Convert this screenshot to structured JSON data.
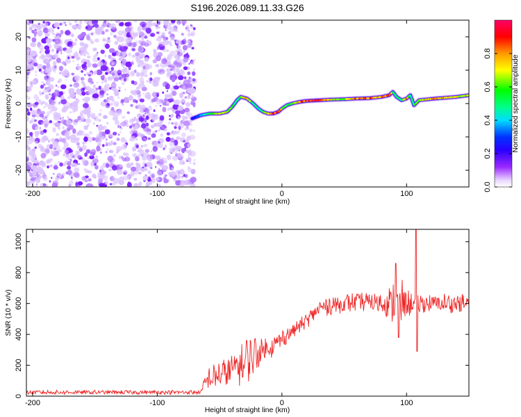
{
  "title": "S196.2026.089.11.33.G26",
  "chart_data": [
    {
      "type": "heatmap",
      "name": "spectrogram",
      "xlabel": "Height of straight line (km)",
      "ylabel": "Frequency (Hz)",
      "xlim": [
        -205,
        150
      ],
      "ylim": [
        -25,
        25
      ],
      "xticks": [
        -200,
        -100,
        0,
        100
      ],
      "yticks": [
        -20,
        -10,
        0,
        10,
        20
      ],
      "colorbar": {
        "label": "Normalized spectral amplitude",
        "range": [
          0,
          1
        ],
        "ticks": [
          "0.0",
          "0.2",
          "0.4",
          "0.6",
          "0.8"
        ],
        "colormap": [
          "#ffffff",
          "#e8c8ff",
          "#7b00ff",
          "#0000ff",
          "#00ffff",
          "#00ff00",
          "#ffff00",
          "#ff8800",
          "#ff0000",
          "#ff0088"
        ]
      },
      "noise_region_x": [
        -205,
        -70
      ],
      "signal_trace": {
        "x": [
          -72,
          -65,
          -58,
          -50,
          -44,
          -40,
          -36,
          -33,
          -28,
          -23,
          -19,
          -15,
          -11,
          -7,
          -3,
          0,
          4,
          8,
          14,
          20,
          30,
          40,
          50,
          60,
          70,
          80,
          86,
          89,
          92,
          96,
          100,
          103,
          106,
          110,
          120,
          130,
          140,
          150
        ],
        "freq_hz": [
          -4.5,
          -3.5,
          -3,
          -3,
          -2.5,
          -1,
          1,
          2,
          1.5,
          0,
          -1.5,
          -2.5,
          -3,
          -3,
          -2.5,
          -1.5,
          -0.5,
          0,
          0.5,
          0.8,
          1,
          1.2,
          1.3,
          1.5,
          1.6,
          2,
          2.5,
          3.5,
          2,
          1,
          1.5,
          2.5,
          -0.5,
          1,
          1.4,
          1.7,
          2,
          2.5
        ],
        "amplitude": [
          0.2,
          0.35,
          0.55,
          0.7,
          0.65,
          0.55,
          0.45,
          0.6,
          0.8,
          0.5,
          0.45,
          0.6,
          0.75,
          0.9,
          0.85,
          0.7,
          0.55,
          0.6,
          0.75,
          0.95,
          0.9,
          0.7,
          0.6,
          0.8,
          0.85,
          0.75,
          0.9,
          0.6,
          0.5,
          0.45,
          0.85,
          0.5,
          0.55,
          0.6,
          0.8,
          0.75,
          0.7,
          0.65
        ]
      }
    },
    {
      "type": "line",
      "name": "snr",
      "color": "#ee2222",
      "xlabel": "Height of straight line (km)",
      "ylabel": "SNR (10 * v/v)",
      "xlim": [
        -205,
        150
      ],
      "ylim": [
        0,
        1080
      ],
      "xticks": [
        -200,
        -100,
        0,
        100
      ],
      "yticks": [
        0,
        200,
        400,
        600,
        800,
        1000
      ],
      "envelope": {
        "x": [
          -205,
          -65,
          -63,
          -60,
          -55,
          -50,
          -45,
          -40,
          -35,
          -30,
          -27,
          -24,
          -20,
          -15,
          -10,
          -5,
          0,
          5,
          10,
          15,
          20,
          25,
          30,
          40,
          50,
          60,
          70,
          80,
          85,
          90,
          95,
          100,
          105,
          110,
          120,
          130,
          140,
          150
        ],
        "mean": [
          25,
          25,
          60,
          110,
          120,
          140,
          150,
          170,
          200,
          210,
          240,
          260,
          280,
          300,
          320,
          340,
          370,
          400,
          430,
          460,
          490,
          530,
          570,
          590,
          600,
          610,
          610,
          605,
          600,
          600,
          600,
          600,
          600,
          600,
          600,
          600,
          600,
          600
        ],
        "noise_amp": [
          12,
          12,
          40,
          60,
          70,
          80,
          90,
          100,
          110,
          110,
          120,
          110,
          100,
          80,
          70,
          60,
          50,
          45,
          40,
          40,
          40,
          45,
          50,
          55,
          55,
          55,
          55,
          60,
          80,
          140,
          150,
          90,
          60,
          55,
          55,
          55,
          55,
          55
        ]
      },
      "spikes": [
        {
          "x": -28.5,
          "y": 360
        },
        {
          "x": 91.5,
          "y": 860
        },
        {
          "x": 93.5,
          "y": 380
        },
        {
          "x": 107.5,
          "y": 1080
        },
        {
          "x": 108.5,
          "y": 290
        }
      ]
    }
  ]
}
